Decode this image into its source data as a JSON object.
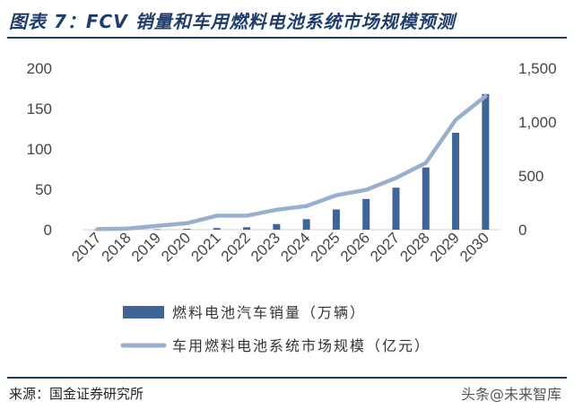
{
  "title": "图表 7：FCV 销量和车用燃料电池系统市场规模预测",
  "source": "来源：国金证券研究所",
  "watermark": "头条@未来智库",
  "colors": {
    "bar": "#3e6596",
    "line": "#9aafd0",
    "title": "#1f3d6b"
  },
  "chart_data": {
    "type": "bar",
    "categories": [
      "2017",
      "2018",
      "2019",
      "2020",
      "2021",
      "2022",
      "2023",
      "2024",
      "2025",
      "2026",
      "2027",
      "2028",
      "2029",
      "2030"
    ],
    "series": [
      {
        "name": "燃料电池汽车销量（万辆）",
        "type": "bar",
        "axis": "left",
        "values": [
          0.1,
          0.2,
          0.5,
          1,
          2,
          3,
          7,
          13,
          25,
          38,
          52,
          77,
          120,
          168
        ]
      },
      {
        "name": "车用燃料电池系统市场规模（亿元）",
        "type": "line",
        "axis": "right",
        "values": [
          5,
          10,
          35,
          60,
          130,
          130,
          185,
          220,
          320,
          370,
          480,
          620,
          1020,
          1240
        ]
      }
    ],
    "y_left": {
      "range": [
        0,
        200
      ],
      "ticks": [
        "0",
        "50",
        "100",
        "150",
        "200"
      ],
      "tick_values": [
        0,
        50,
        100,
        150,
        200
      ]
    },
    "y_right": {
      "range": [
        0,
        1500
      ],
      "ticks": [
        "0",
        "500",
        "1,000",
        "1,500"
      ],
      "tick_values": [
        0,
        500,
        1000,
        1500
      ]
    },
    "legend_position": "bottom"
  }
}
